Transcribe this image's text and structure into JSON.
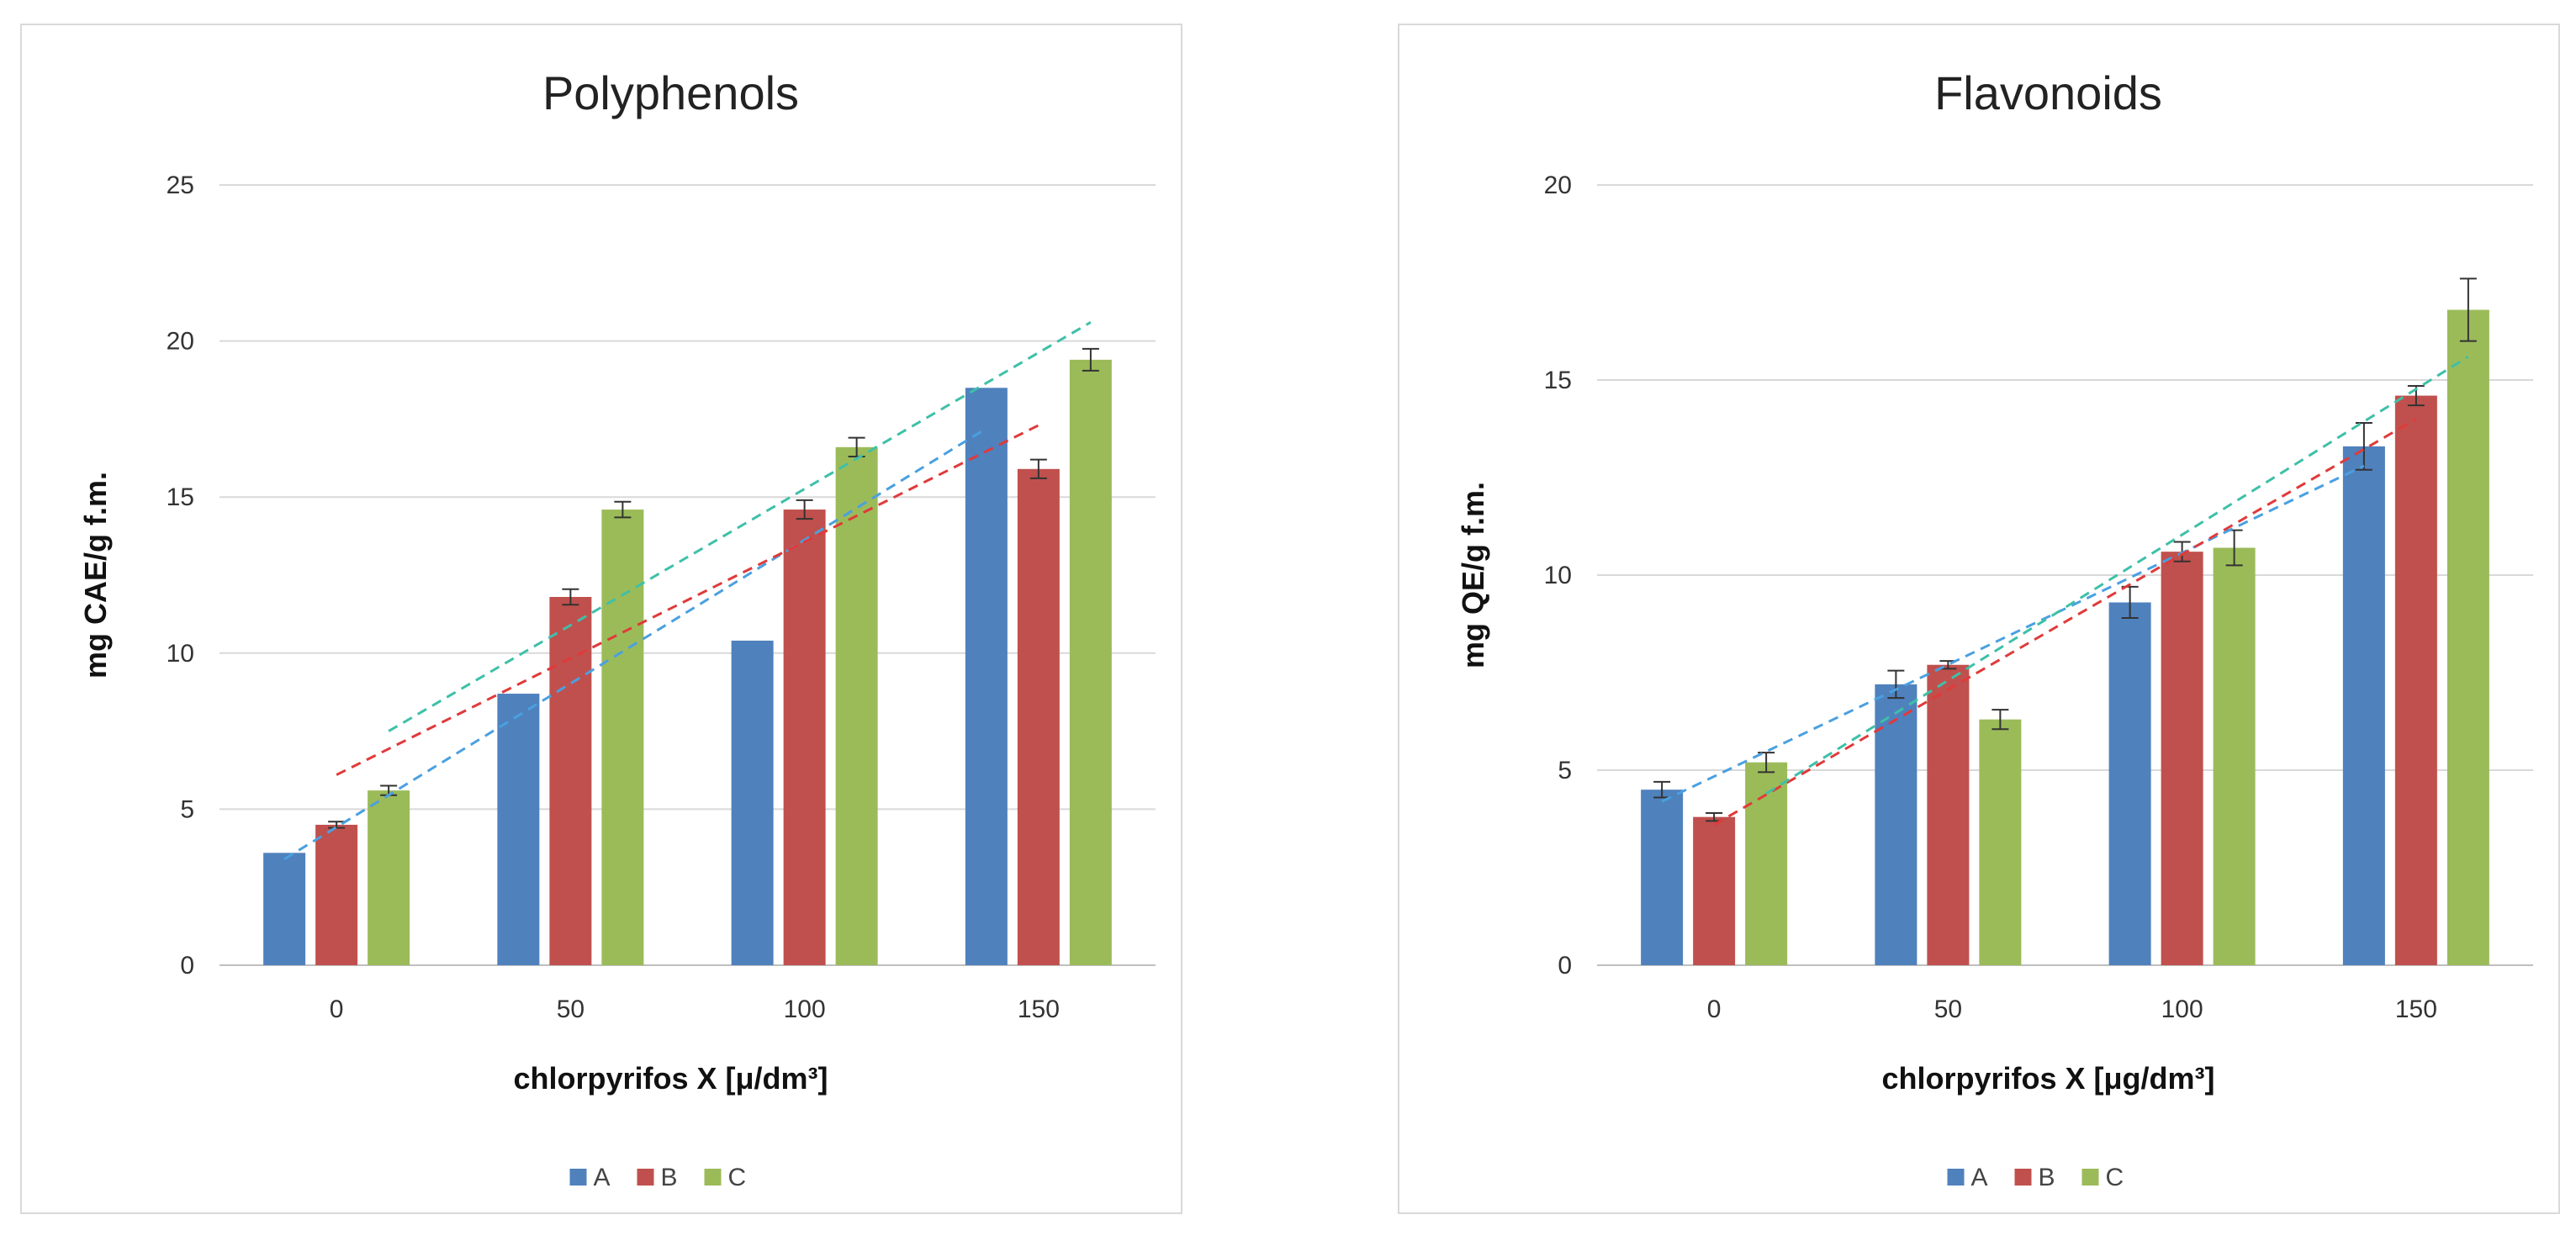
{
  "chart_data": [
    {
      "type": "bar",
      "title": "Polyphenols",
      "xlabel": "chlorpyrifos  X [μ/dm³]",
      "ylabel": "mg CAE/g f.m.",
      "categories": [
        "0",
        "50",
        "100",
        "150"
      ],
      "ylim": [
        0,
        25
      ],
      "yticks": [
        "0",
        "5",
        "10",
        "15",
        "20",
        "25"
      ],
      "grid": true,
      "legend_position": "bottom",
      "series": [
        {
          "name": "A",
          "values": [
            3.6,
            8.7,
            10.4,
            18.5
          ],
          "errors": [
            0,
            0,
            0,
            0
          ]
        },
        {
          "name": "B",
          "values": [
            4.5,
            11.8,
            14.6,
            15.9
          ],
          "errors": [
            0.1,
            0.25,
            0.3,
            0.3
          ]
        },
        {
          "name": "C",
          "values": [
            5.6,
            14.6,
            16.6,
            19.4
          ],
          "errors": [
            0.15,
            0.25,
            0.3,
            0.35
          ]
        }
      ],
      "trendlines": [
        {
          "series": "A",
          "start": [
            0,
            3.4
          ],
          "end": [
            3,
            17.2
          ]
        },
        {
          "series": "B",
          "start": [
            0,
            6.1
          ],
          "end": [
            3,
            17.3
          ]
        },
        {
          "series": "C",
          "start": [
            0,
            7.5
          ],
          "end": [
            3,
            20.6
          ]
        }
      ]
    },
    {
      "type": "bar",
      "title": "Flavonoids",
      "xlabel": "chlorpyrifos X [μg/dm³]",
      "ylabel": "mg QE/g f.m.",
      "categories": [
        "0",
        "50",
        "100",
        "150"
      ],
      "ylim": [
        0,
        20
      ],
      "yticks": [
        "0",
        "5",
        "10",
        "15",
        "20"
      ],
      "grid": true,
      "legend_position": "bottom",
      "series": [
        {
          "name": "A",
          "values": [
            4.5,
            7.2,
            9.3,
            13.3
          ],
          "errors": [
            0.2,
            0.35,
            0.4,
            0.6
          ]
        },
        {
          "name": "B",
          "values": [
            3.8,
            7.7,
            10.6,
            14.6
          ],
          "errors": [
            0.1,
            0.1,
            0.25,
            0.25
          ]
        },
        {
          "name": "C",
          "values": [
            5.2,
            6.3,
            10.7,
            16.8
          ],
          "errors": [
            0.25,
            0.25,
            0.45,
            0.8
          ]
        }
      ],
      "trendlines": [
        {
          "series": "A",
          "start": [
            0,
            4.2
          ],
          "end": [
            3,
            12.8
          ]
        },
        {
          "series": "B",
          "start": [
            0,
            3.6
          ],
          "end": [
            3,
            14.0
          ]
        },
        {
          "series": "C",
          "start": [
            0,
            4.4
          ],
          "end": [
            3,
            15.6
          ]
        }
      ]
    }
  ],
  "colors": {
    "A": "#4f81bd",
    "B": "#c0504d",
    "C": "#9bbb59",
    "trend_A": "#4aa0e0",
    "trend_B": "#e03a3a",
    "trend_C": "#3ec0a8"
  }
}
